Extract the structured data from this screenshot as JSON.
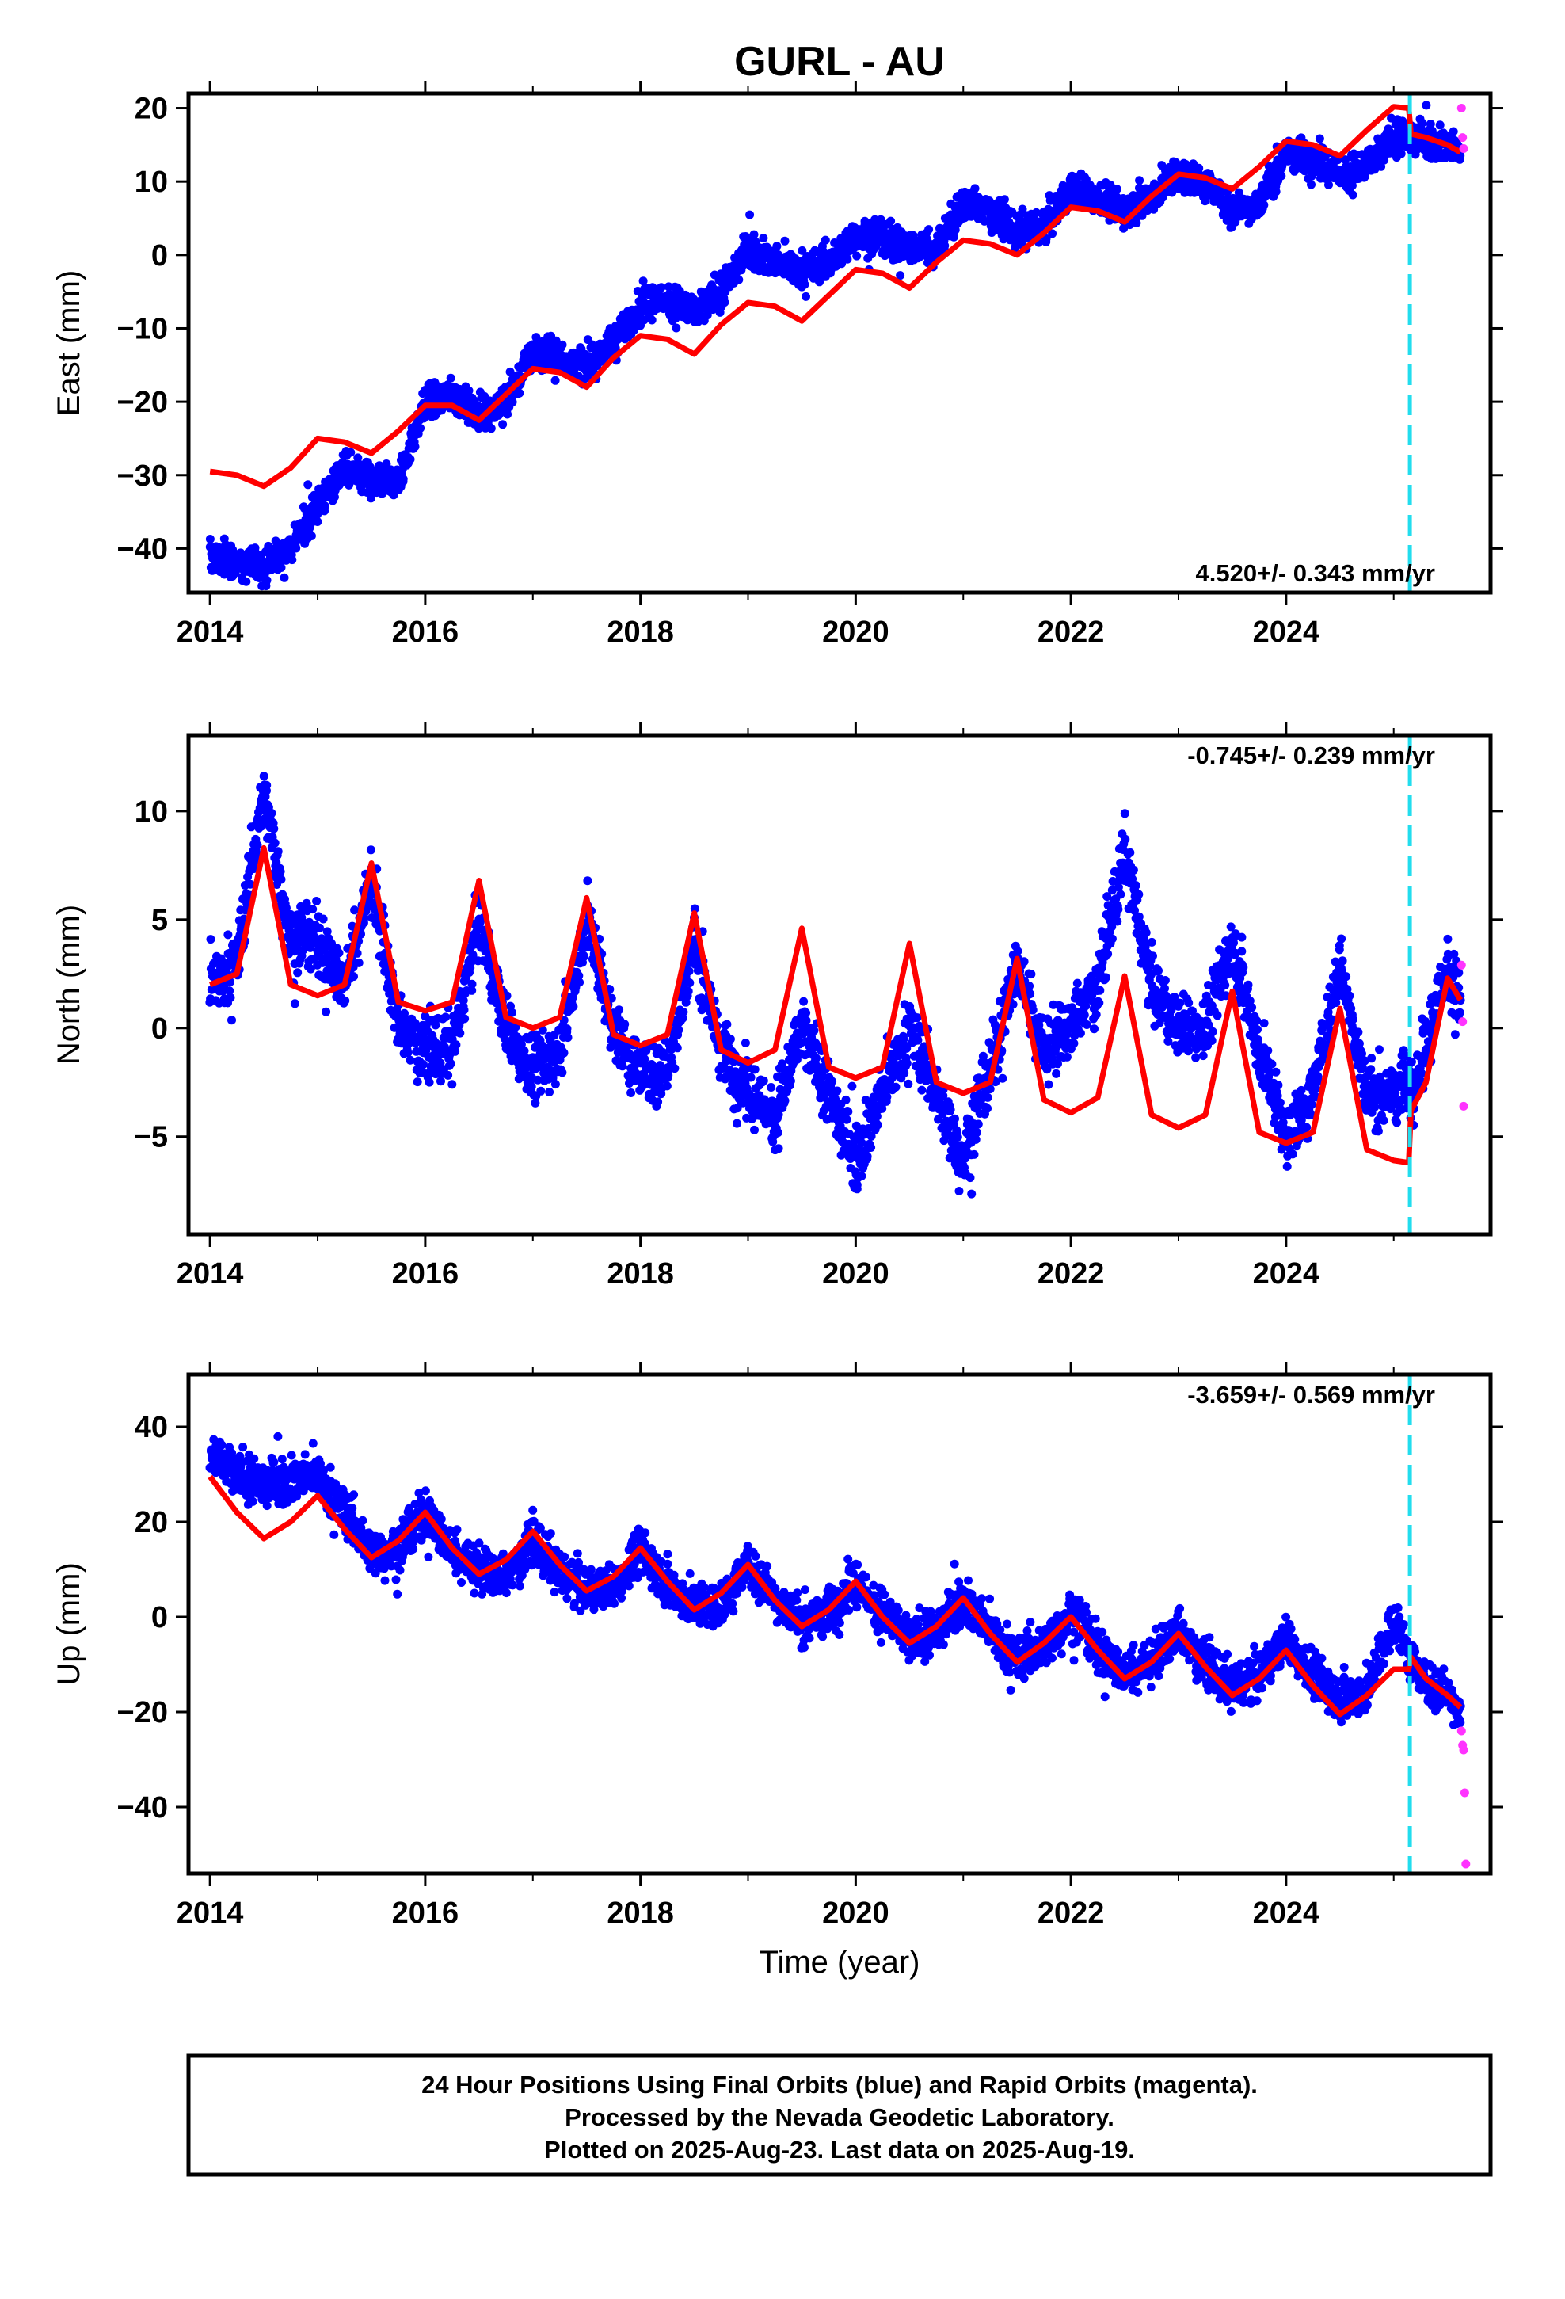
{
  "title": "GURL - AU",
  "x_axis_label": "Time (year)",
  "footer": {
    "lines": [
      "24 Hour Positions Using Final Orbits (blue) and Rapid Orbits (magenta).",
      "Processed by the Nevada Geodetic Laboratory.",
      "Plotted on 2025-Aug-23. Last data on 2025-Aug-19."
    ]
  },
  "colors": {
    "final_orbits": "#0000ff",
    "rapid_orbits": "#ff33ff",
    "model": "#ff0000",
    "event_line": "#22ddee"
  },
  "chart_data": [
    {
      "type": "scatter",
      "name": "east",
      "ylabel": "East (mm)",
      "rate_label": "4.520+/- 0.343 mm/yr",
      "xlim": [
        2013.8,
        2025.9
      ],
      "ylim": [
        -46,
        22
      ],
      "xticks": [
        2014,
        2016,
        2018,
        2020,
        2022,
        2024
      ],
      "yticks": [
        -40,
        -30,
        -20,
        -10,
        0,
        10,
        20
      ],
      "event_line_x": 2025.15,
      "series": [
        {
          "name": "Final Orbits (blue)",
          "x": [
            2014.0,
            2014.25,
            2014.5,
            2014.75,
            2015.0,
            2015.25,
            2015.5,
            2015.75,
            2016.0,
            2016.25,
            2016.5,
            2016.75,
            2017.0,
            2017.25,
            2017.5,
            2017.75,
            2018.0,
            2018.25,
            2018.5,
            2018.75,
            2019.0,
            2019.25,
            2019.5,
            2019.75,
            2020.0,
            2020.25,
            2020.5,
            2020.75,
            2021.0,
            2021.25,
            2021.5,
            2021.75,
            2022.0,
            2022.25,
            2022.5,
            2022.75,
            2023.0,
            2023.25,
            2023.5,
            2023.75,
            2024.0,
            2024.25,
            2024.5,
            2024.75,
            2025.0,
            2025.25,
            2025.5,
            2025.62
          ],
          "y": [
            -41,
            -42,
            -42.5,
            -40,
            -34,
            -29,
            -31,
            -31,
            -20,
            -19,
            -22,
            -20,
            -13,
            -14,
            -15,
            -12,
            -7,
            -6,
            -8,
            -5,
            1,
            -1,
            -2,
            -1,
            3,
            2,
            1,
            1,
            7,
            6,
            3,
            4,
            9,
            8,
            6,
            8,
            11,
            10,
            6,
            7,
            14,
            13,
            11,
            12,
            16,
            16,
            15,
            14
          ]
        },
        {
          "name": "Rapid Orbits (magenta)",
          "x": [
            2025.63,
            2025.64,
            2025.65
          ],
          "y": [
            20,
            16,
            14.5
          ]
        },
        {
          "name": "model",
          "x": [
            2014.0,
            2014.25,
            2014.5,
            2014.75,
            2015.0,
            2015.25,
            2015.5,
            2015.75,
            2016.0,
            2016.25,
            2016.5,
            2016.75,
            2017.0,
            2017.25,
            2017.5,
            2017.75,
            2018.0,
            2018.25,
            2018.5,
            2018.75,
            2019.0,
            2019.25,
            2019.5,
            2019.75,
            2020.0,
            2020.25,
            2020.5,
            2020.75,
            2021.0,
            2021.25,
            2021.5,
            2021.75,
            2022.0,
            2022.25,
            2022.5,
            2022.75,
            2023.0,
            2023.25,
            2023.5,
            2023.75,
            2024.0,
            2024.25,
            2024.5,
            2024.75,
            2025.0,
            2025.14,
            2025.16,
            2025.3,
            2025.5,
            2025.62
          ],
          "y": [
            -29.5,
            -30,
            -31.5,
            -29,
            -25,
            -25.5,
            -27,
            -24,
            -20.5,
            -20.5,
            -22.5,
            -19,
            -15.5,
            -16,
            -18,
            -14,
            -11,
            -11.5,
            -13.5,
            -9.5,
            -6.5,
            -7,
            -9,
            -5.5,
            -2,
            -2.5,
            -4.5,
            -1,
            2,
            1.5,
            0,
            3,
            6.5,
            6,
            4.5,
            8,
            11,
            10.5,
            9,
            12,
            15.5,
            15,
            13.5,
            17,
            20.2,
            20,
            16.5,
            16,
            15,
            14
          ]
        }
      ]
    },
    {
      "type": "scatter",
      "name": "north",
      "ylabel": "North (mm)",
      "rate_label": "-0.745+/- 0.239 mm/yr",
      "xlim": [
        2013.8,
        2025.9
      ],
      "ylim": [
        -9.5,
        13.5
      ],
      "xticks": [
        2014,
        2016,
        2018,
        2020,
        2022,
        2024
      ],
      "yticks": [
        -5,
        0,
        5,
        10
      ],
      "event_line_x": 2025.15,
      "series": [
        {
          "name": "Final Orbits (blue)",
          "x": [
            2014.0,
            2014.25,
            2014.5,
            2014.75,
            2015.0,
            2015.25,
            2015.5,
            2015.75,
            2016.0,
            2016.25,
            2016.5,
            2016.75,
            2017.0,
            2017.25,
            2017.5,
            2017.75,
            2018.0,
            2018.25,
            2018.5,
            2018.75,
            2019.0,
            2019.25,
            2019.5,
            2019.75,
            2020.0,
            2020.25,
            2020.5,
            2020.75,
            2021.0,
            2021.25,
            2021.5,
            2021.75,
            2022.0,
            2022.25,
            2022.5,
            2022.75,
            2023.0,
            2023.25,
            2023.5,
            2023.75,
            2024.0,
            2024.25,
            2024.5,
            2024.75,
            2025.0,
            2025.25,
            2025.5,
            2025.62
          ],
          "y": [
            2,
            3,
            11,
            4,
            4,
            2,
            7,
            0,
            -1,
            -1,
            5,
            0,
            -2,
            -1,
            5,
            0,
            -2,
            -2,
            4,
            -1,
            -3,
            -4,
            0,
            -3,
            -6,
            -3,
            0,
            -3,
            -6,
            -2,
            3,
            -1,
            0,
            2,
            8,
            2,
            0,
            0,
            4,
            -1,
            -5,
            -3,
            3,
            -3,
            -3,
            -2,
            3,
            1
          ]
        },
        {
          "name": "Rapid Orbits (magenta)",
          "x": [
            2025.63,
            2025.64,
            2025.65
          ],
          "y": [
            2.9,
            0.3,
            -3.6
          ]
        },
        {
          "name": "model",
          "x": [
            2014.0,
            2014.25,
            2014.5,
            2014.75,
            2015.0,
            2015.25,
            2015.5,
            2015.75,
            2016.0,
            2016.25,
            2016.5,
            2016.75,
            2017.0,
            2017.25,
            2017.5,
            2017.75,
            2018.0,
            2018.25,
            2018.5,
            2018.75,
            2019.0,
            2019.25,
            2019.5,
            2019.75,
            2020.0,
            2020.25,
            2020.5,
            2020.75,
            2021.0,
            2021.25,
            2021.5,
            2021.75,
            2022.0,
            2022.25,
            2022.5,
            2022.75,
            2023.0,
            2023.25,
            2023.5,
            2023.75,
            2024.0,
            2024.25,
            2024.5,
            2024.75,
            2025.0,
            2025.14,
            2025.16,
            2025.3,
            2025.5,
            2025.62
          ],
          "y": [
            2,
            2.5,
            8.3,
            2,
            1.5,
            2,
            7.6,
            1.2,
            0.8,
            1.2,
            6.8,
            0.5,
            0,
            0.5,
            6,
            -0.3,
            -0.8,
            -0.3,
            5.3,
            -1,
            -1.6,
            -1,
            4.6,
            -1.8,
            -2.3,
            -1.8,
            3.9,
            -2.5,
            -3,
            -2.5,
            3.2,
            -3.3,
            -3.9,
            -3.2,
            2.4,
            -4,
            -4.6,
            -4,
            1.7,
            -4.8,
            -5.3,
            -4.8,
            0.9,
            -5.6,
            -6.1,
            -6.2,
            -3.8,
            -2.5,
            2.3,
            1.3
          ]
        }
      ]
    },
    {
      "type": "scatter",
      "name": "up",
      "ylabel": "Up (mm)",
      "rate_label": "-3.659+/- 0.569 mm/yr",
      "xlim": [
        2013.8,
        2025.9
      ],
      "ylim": [
        -54,
        51
      ],
      "xticks": [
        2014,
        2016,
        2018,
        2020,
        2022,
        2024
      ],
      "yticks": [
        -40,
        -20,
        0,
        20,
        40
      ],
      "event_line_x": 2025.15,
      "series": [
        {
          "name": "Final Orbits (blue)",
          "x": [
            2014.0,
            2014.25,
            2014.5,
            2014.75,
            2015.0,
            2015.25,
            2015.5,
            2015.75,
            2016.0,
            2016.25,
            2016.5,
            2016.75,
            2017.0,
            2017.25,
            2017.5,
            2017.75,
            2018.0,
            2018.25,
            2018.5,
            2018.75,
            2019.0,
            2019.25,
            2019.5,
            2019.75,
            2020.0,
            2020.25,
            2020.5,
            2020.75,
            2021.0,
            2021.25,
            2021.5,
            2021.75,
            2022.0,
            2022.25,
            2022.5,
            2022.75,
            2023.0,
            2023.25,
            2023.5,
            2023.75,
            2024.0,
            2024.25,
            2024.5,
            2024.75,
            2025.0,
            2025.25,
            2025.5,
            2025.62
          ],
          "y": [
            34,
            30,
            28,
            29,
            30,
            22,
            14,
            14,
            22,
            14,
            10,
            8,
            16,
            9,
            6,
            6,
            14,
            7,
            2,
            3,
            11,
            4,
            -1,
            1,
            7,
            1,
            -5,
            -3,
            4,
            -3,
            -9,
            -6,
            1,
            -7,
            -12,
            -9,
            -3,
            -10,
            -15,
            -12,
            -5,
            -12,
            -17,
            -16,
            0,
            -13,
            -16,
            -20
          ]
        },
        {
          "name": "Rapid Orbits (magenta)",
          "x": [
            2025.63,
            2025.64,
            2025.65,
            2025.66,
            2025.67
          ],
          "y": [
            -24,
            -27,
            -28,
            -37,
            -52
          ]
        },
        {
          "name": "model",
          "x": [
            2014.0,
            2014.25,
            2014.5,
            2014.75,
            2015.0,
            2015.25,
            2015.5,
            2015.75,
            2016.0,
            2016.25,
            2016.5,
            2016.75,
            2017.0,
            2017.25,
            2017.5,
            2017.75,
            2018.0,
            2018.25,
            2018.5,
            2018.75,
            2019.0,
            2019.25,
            2019.5,
            2019.75,
            2020.0,
            2020.25,
            2020.5,
            2020.75,
            2021.0,
            2021.25,
            2021.5,
            2021.75,
            2022.0,
            2022.25,
            2022.5,
            2022.75,
            2023.0,
            2023.25,
            2023.5,
            2023.75,
            2024.0,
            2024.25,
            2024.5,
            2024.75,
            2025.0,
            2025.14,
            2025.16,
            2025.3,
            2025.5,
            2025.62
          ],
          "y": [
            29.5,
            22,
            16.5,
            20,
            25.5,
            18.5,
            12.5,
            16,
            22,
            14.5,
            9,
            12,
            18,
            11,
            5.5,
            8.5,
            14.5,
            7.5,
            1.5,
            5,
            11,
            3.5,
            -2,
            1.5,
            7.5,
            0,
            -5.5,
            -2,
            4,
            -3.5,
            -9.5,
            -5.5,
            0,
            -7,
            -13,
            -9.5,
            -3.5,
            -10.5,
            -16.5,
            -13,
            -7,
            -14.5,
            -20.5,
            -16.5,
            -11,
            -11,
            -8.5,
            -13,
            -16.5,
            -19
          ]
        }
      ]
    }
  ]
}
